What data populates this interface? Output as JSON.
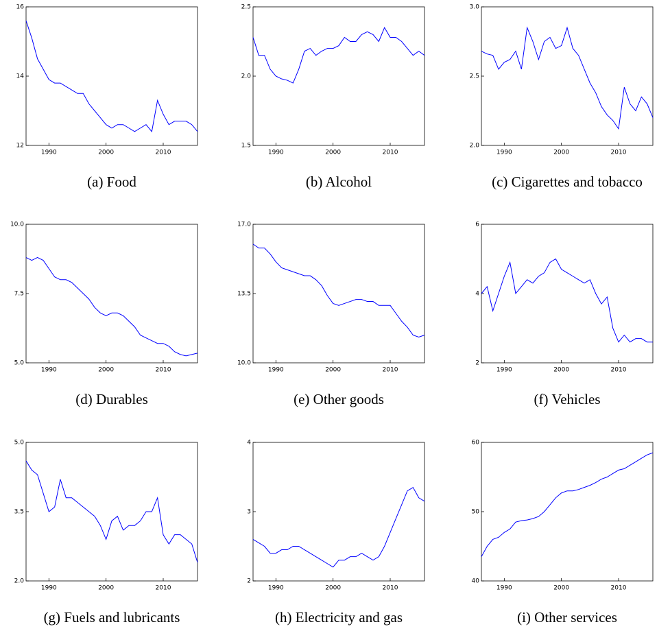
{
  "chart_data": [
    {
      "type": "line",
      "title": "(a) Food",
      "x": [
        1986,
        1987,
        1988,
        1989,
        1990,
        1991,
        1992,
        1993,
        1994,
        1995,
        1996,
        1997,
        1998,
        1999,
        2000,
        2001,
        2002,
        2003,
        2004,
        2005,
        2006,
        2007,
        2008,
        2009,
        2010,
        2011,
        2012,
        2013,
        2014,
        2015,
        2016
      ],
      "series": [
        {
          "color": "#0000ff",
          "values": [
            15.6,
            15.1,
            14.5,
            14.2,
            13.9,
            13.8,
            13.8,
            13.7,
            13.6,
            13.5,
            13.5,
            13.2,
            13.0,
            12.8,
            12.6,
            12.5,
            12.6,
            12.6,
            12.5,
            12.4,
            12.5,
            12.6,
            12.4,
            13.3,
            12.9,
            12.6,
            12.7,
            12.7,
            12.7,
            12.6,
            12.4
          ]
        }
      ],
      "xlim": [
        1986,
        2016
      ],
      "xticks": [
        1990,
        2000,
        2010
      ],
      "ylim": [
        12,
        16
      ],
      "yticks": [
        12,
        14,
        16
      ]
    },
    {
      "type": "line",
      "title": "(b) Alcohol",
      "x": [
        1986,
        1987,
        1988,
        1989,
        1990,
        1991,
        1992,
        1993,
        1994,
        1995,
        1996,
        1997,
        1998,
        1999,
        2000,
        2001,
        2002,
        2003,
        2004,
        2005,
        2006,
        2007,
        2008,
        2009,
        2010,
        2011,
        2012,
        2013,
        2014,
        2015,
        2016
      ],
      "series": [
        {
          "color": "#0000ff",
          "values": [
            2.28,
            2.15,
            2.15,
            2.05,
            2.0,
            1.98,
            1.97,
            1.95,
            2.05,
            2.18,
            2.2,
            2.15,
            2.18,
            2.2,
            2.2,
            2.22,
            2.28,
            2.25,
            2.25,
            2.3,
            2.32,
            2.3,
            2.25,
            2.35,
            2.28,
            2.28,
            2.25,
            2.2,
            2.15,
            2.18,
            2.15
          ]
        }
      ],
      "xlim": [
        1986,
        2016
      ],
      "xticks": [
        1990,
        2000,
        2010
      ],
      "ylim": [
        1.5,
        2.5
      ],
      "yticks": [
        1.5,
        {
          "value": 2,
          "label": "2.0"
        },
        2.5
      ]
    },
    {
      "type": "line",
      "title": "(c) Cigarettes and tobacco",
      "x": [
        1986,
        1987,
        1988,
        1989,
        1990,
        1991,
        1992,
        1993,
        1994,
        1995,
        1996,
        1997,
        1998,
        1999,
        2000,
        2001,
        2002,
        2003,
        2004,
        2005,
        2006,
        2007,
        2008,
        2009,
        2010,
        2011,
        2012,
        2013,
        2014,
        2015,
        2016
      ],
      "series": [
        {
          "color": "#0000ff",
          "values": [
            2.68,
            2.66,
            2.65,
            2.55,
            2.6,
            2.62,
            2.68,
            2.55,
            2.85,
            2.75,
            2.62,
            2.75,
            2.78,
            2.7,
            2.72,
            2.85,
            2.7,
            2.65,
            2.55,
            2.45,
            2.38,
            2.28,
            2.22,
            2.18,
            2.12,
            2.42,
            2.3,
            2.25,
            2.35,
            2.3,
            2.2
          ]
        }
      ],
      "xlim": [
        1986,
        2016
      ],
      "xticks": [
        1990,
        2000,
        2010
      ],
      "ylim": [
        2,
        3
      ],
      "yticks": [
        {
          "value": 2,
          "label": "2.0"
        },
        2.5,
        {
          "value": 3,
          "label": "3.0"
        }
      ]
    },
    {
      "type": "line",
      "title": "(d) Durables",
      "x": [
        1986,
        1987,
        1988,
        1989,
        1990,
        1991,
        1992,
        1993,
        1994,
        1995,
        1996,
        1997,
        1998,
        1999,
        2000,
        2001,
        2002,
        2003,
        2004,
        2005,
        2006,
        2007,
        2008,
        2009,
        2010,
        2011,
        2012,
        2013,
        2014,
        2015,
        2016
      ],
      "series": [
        {
          "color": "#0000ff",
          "values": [
            8.8,
            8.7,
            8.8,
            8.7,
            8.4,
            8.1,
            8.0,
            8.0,
            7.9,
            7.7,
            7.5,
            7.3,
            7.0,
            6.8,
            6.7,
            6.8,
            6.8,
            6.7,
            6.5,
            6.3,
            6.0,
            5.9,
            5.8,
            5.7,
            5.7,
            5.6,
            5.4,
            5.3,
            5.25,
            5.3,
            5.35
          ]
        }
      ],
      "xlim": [
        1986,
        2016
      ],
      "xticks": [
        1990,
        2000,
        2010
      ],
      "ylim": [
        5,
        10
      ],
      "yticks": [
        {
          "value": 5,
          "label": "5.0"
        },
        7.5,
        {
          "value": 10,
          "label": "10.0"
        }
      ]
    },
    {
      "type": "line",
      "title": "(e) Other goods",
      "x": [
        1986,
        1987,
        1988,
        1989,
        1990,
        1991,
        1992,
        1993,
        1994,
        1995,
        1996,
        1997,
        1998,
        1999,
        2000,
        2001,
        2002,
        2003,
        2004,
        2005,
        2006,
        2007,
        2008,
        2009,
        2010,
        2011,
        2012,
        2013,
        2014,
        2015,
        2016
      ],
      "series": [
        {
          "color": "#0000ff",
          "values": [
            16.0,
            15.8,
            15.8,
            15.5,
            15.1,
            14.8,
            14.7,
            14.6,
            14.5,
            14.4,
            14.4,
            14.2,
            13.9,
            13.4,
            13.0,
            12.9,
            13.0,
            13.1,
            13.2,
            13.2,
            13.1,
            13.1,
            12.9,
            12.9,
            12.9,
            12.5,
            12.1,
            11.8,
            11.4,
            11.3,
            11.4
          ]
        }
      ],
      "xlim": [
        1986,
        2016
      ],
      "xticks": [
        1990,
        2000,
        2010
      ],
      "ylim": [
        10,
        17
      ],
      "yticks": [
        {
          "value": 10,
          "label": "10.0"
        },
        13.5,
        {
          "value": 17,
          "label": "17.0"
        }
      ]
    },
    {
      "type": "line",
      "title": "(f) Vehicles",
      "x": [
        1986,
        1987,
        1988,
        1989,
        1990,
        1991,
        1992,
        1993,
        1994,
        1995,
        1996,
        1997,
        1998,
        1999,
        2000,
        2001,
        2002,
        2003,
        2004,
        2005,
        2006,
        2007,
        2008,
        2009,
        2010,
        2011,
        2012,
        2013,
        2014,
        2015,
        2016
      ],
      "series": [
        {
          "color": "#0000ff",
          "values": [
            4.0,
            4.2,
            3.5,
            4.0,
            4.5,
            4.9,
            4.0,
            4.2,
            4.4,
            4.3,
            4.5,
            4.6,
            4.9,
            5.0,
            4.7,
            4.6,
            4.5,
            4.4,
            4.3,
            4.4,
            4.0,
            3.7,
            3.9,
            3.0,
            2.6,
            2.8,
            2.6,
            2.7,
            2.7,
            2.6,
            2.6
          ]
        }
      ],
      "xlim": [
        1986,
        2016
      ],
      "xticks": [
        1990,
        2000,
        2010
      ],
      "ylim": [
        2,
        6
      ],
      "yticks": [
        2,
        4,
        6
      ]
    },
    {
      "type": "line",
      "title": "(g) Fuels and lubricants",
      "x": [
        1986,
        1987,
        1988,
        1989,
        1990,
        1991,
        1992,
        1993,
        1994,
        1995,
        1996,
        1997,
        1998,
        1999,
        2000,
        2001,
        2002,
        2003,
        2004,
        2005,
        2006,
        2007,
        2008,
        2009,
        2010,
        2011,
        2012,
        2013,
        2014,
        2015,
        2016
      ],
      "series": [
        {
          "color": "#0000ff",
          "values": [
            4.6,
            4.4,
            4.3,
            3.9,
            3.5,
            3.6,
            4.2,
            3.8,
            3.8,
            3.7,
            3.6,
            3.5,
            3.4,
            3.2,
            2.9,
            3.3,
            3.4,
            3.1,
            3.2,
            3.2,
            3.3,
            3.5,
            3.5,
            3.8,
            3.0,
            2.8,
            3.0,
            3.0,
            2.9,
            2.8,
            2.4
          ]
        }
      ],
      "xlim": [
        1986,
        2016
      ],
      "xticks": [
        1990,
        2000,
        2010
      ],
      "ylim": [
        2,
        5
      ],
      "yticks": [
        {
          "value": 2,
          "label": "2.0"
        },
        3.5,
        {
          "value": 5,
          "label": "5.0"
        }
      ]
    },
    {
      "type": "line",
      "title": "(h) Electricity and gas",
      "x": [
        1986,
        1987,
        1988,
        1989,
        1990,
        1991,
        1992,
        1993,
        1994,
        1995,
        1996,
        1997,
        1998,
        1999,
        2000,
        2001,
        2002,
        2003,
        2004,
        2005,
        2006,
        2007,
        2008,
        2009,
        2010,
        2011,
        2012,
        2013,
        2014,
        2015,
        2016
      ],
      "series": [
        {
          "color": "#0000ff",
          "values": [
            2.6,
            2.55,
            2.5,
            2.4,
            2.4,
            2.45,
            2.45,
            2.5,
            2.5,
            2.45,
            2.4,
            2.35,
            2.3,
            2.25,
            2.2,
            2.3,
            2.3,
            2.35,
            2.35,
            2.4,
            2.35,
            2.3,
            2.35,
            2.5,
            2.7,
            2.9,
            3.1,
            3.3,
            3.35,
            3.2,
            3.15
          ]
        }
      ],
      "xlim": [
        1986,
        2016
      ],
      "xticks": [
        1990,
        2000,
        2010
      ],
      "ylim": [
        2,
        4
      ],
      "yticks": [
        2,
        3,
        4
      ]
    },
    {
      "type": "line",
      "title": "(i) Other services",
      "x": [
        1986,
        1987,
        1988,
        1989,
        1990,
        1991,
        1992,
        1993,
        1994,
        1995,
        1996,
        1997,
        1998,
        1999,
        2000,
        2001,
        2002,
        2003,
        2004,
        2005,
        2006,
        2007,
        2008,
        2009,
        2010,
        2011,
        2012,
        2013,
        2014,
        2015,
        2016
      ],
      "series": [
        {
          "color": "#0000ff",
          "values": [
            43.5,
            45,
            46,
            46.3,
            47,
            47.5,
            48.5,
            48.7,
            48.8,
            49,
            49.3,
            50,
            51,
            52,
            52.7,
            53,
            53,
            53.2,
            53.5,
            53.8,
            54.2,
            54.7,
            55,
            55.5,
            56,
            56.2,
            56.7,
            57.2,
            57.7,
            58.2,
            58.5
          ]
        }
      ],
      "xlim": [
        1986,
        2016
      ],
      "xticks": [
        1990,
        2000,
        2010
      ],
      "ylim": [
        40,
        60
      ],
      "yticks": [
        40,
        50,
        60
      ]
    }
  ]
}
